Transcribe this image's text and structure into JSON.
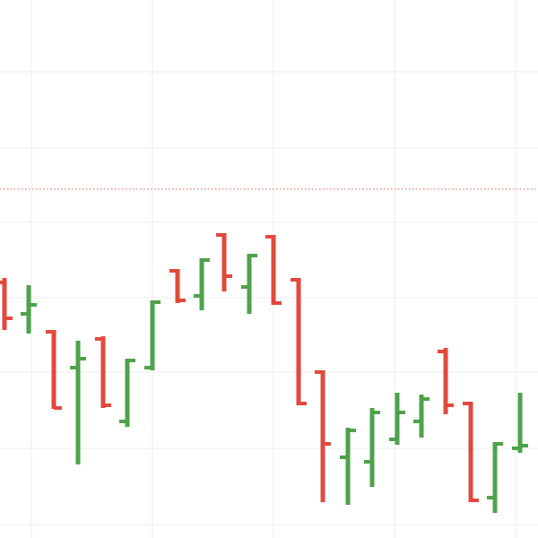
{
  "chart_data": {
    "type": "ohlc",
    "x": [
      5,
      32,
      60,
      87,
      115,
      142,
      170,
      198,
      225,
      250,
      278,
      305,
      333,
      360,
      388,
      415,
      443,
      470,
      497,
      525,
      552,
      580
    ],
    "open": [
      285,
      250,
      230,
      190,
      222,
      130,
      190,
      298,
      270,
      338,
      280,
      336,
      288,
      185,
      90,
      85,
      110,
      130,
      208,
      150,
      45,
      100
    ],
    "high": [
      290,
      282,
      232,
      220,
      225,
      200,
      265,
      300,
      312,
      340,
      317,
      338,
      290,
      187,
      123,
      145,
      162,
      160,
      212,
      152,
      107,
      162
    ],
    "low": [
      232,
      228,
      144,
      82,
      145,
      124,
      187,
      262,
      254,
      275,
      250,
      260,
      148,
      40,
      37,
      57,
      104,
      112,
      138,
      40,
      28,
      95
    ],
    "close": [
      245,
      260,
      145,
      200,
      148,
      198,
      263,
      265,
      310,
      292,
      315,
      262,
      150,
      105,
      120,
      140,
      140,
      155,
      148,
      42,
      105,
      103
    ],
    "up_color": "#4ea24a",
    "down_color": "#e2493c",
    "xlim": [
      0,
      600
    ],
    "ylim": [
      0,
      600
    ],
    "xticks": [
      35,
      170,
      305,
      440,
      575
    ],
    "yticks": [
      15,
      100,
      185,
      268,
      352,
      435,
      520
    ],
    "grid": true,
    "ref_line": 389,
    "ref_color": "#d9604f"
  }
}
